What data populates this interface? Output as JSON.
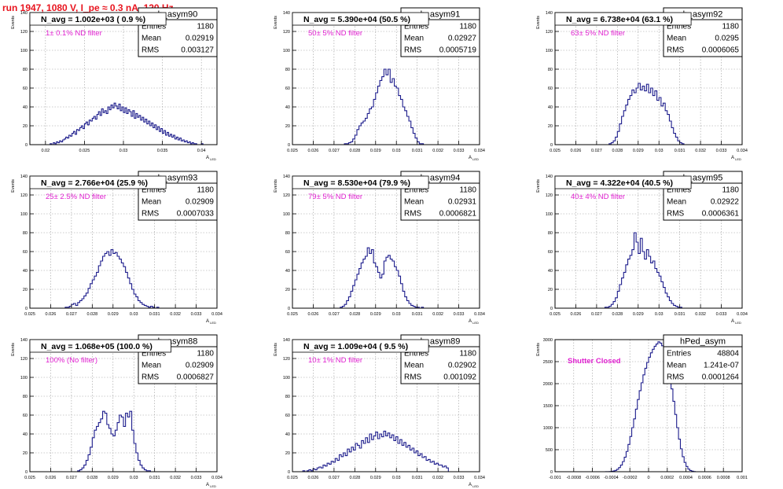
{
  "title": "run 1947,  1080 V, I_pe ≈ 0.3 nA, 120 Hz",
  "colors": {
    "title": "#e8141e",
    "histogram_line": "#1c1c8c",
    "annotation": "#e020d0",
    "grid": "#9a9a9a"
  },
  "chart_data": [
    {
      "type": "bar",
      "histogram": "h_asym90",
      "navg": "N_avg = 1.002e+03 ( 0.9 %)",
      "annotation": "1± 0.1% ND filter",
      "stats": [
        [
          "Entries",
          "1180"
        ],
        [
          "Mean",
          "0.02919"
        ],
        [
          "RMS",
          "0.003127"
        ]
      ],
      "xlim": [
        0.018,
        0.042
      ],
      "ylim": [
        0,
        140
      ],
      "xticks": [
        0.02,
        0.025,
        0.03,
        0.035,
        0.04
      ],
      "xtick_labels": [
        "0.02",
        "0.025",
        "0.03",
        "0.035",
        "0.04"
      ],
      "yticks": [
        0,
        20,
        40,
        60,
        80,
        100,
        120,
        140
      ],
      "ytick_labels": [
        "0",
        "20",
        "40",
        "60",
        "80",
        "100",
        "120",
        "140"
      ],
      "xlabel": "A_{LED}",
      "ylabel": "Events",
      "bin_edges": [
        0.018,
        0.042
      ],
      "values": [
        0,
        0,
        0,
        0,
        0,
        0,
        0,
        0,
        0,
        0,
        0,
        0,
        0,
        1,
        0,
        2,
        1,
        3,
        2,
        4,
        3,
        5,
        6,
        8,
        7,
        10,
        9,
        12,
        14,
        11,
        16,
        15,
        18,
        20,
        17,
        22,
        24,
        21,
        26,
        25,
        28,
        30,
        27,
        32,
        35,
        31,
        38,
        34,
        36,
        33,
        40,
        37,
        42,
        39,
        44,
        41,
        38,
        43,
        36,
        40,
        34,
        39,
        33,
        37,
        35,
        30,
        36,
        28,
        33,
        29,
        31,
        26,
        29,
        24,
        27,
        22,
        25,
        20,
        23,
        18,
        21,
        16,
        19,
        14,
        17,
        12,
        15,
        10,
        13,
        9,
        11,
        8,
        10,
        6,
        8,
        5,
        7,
        4,
        5,
        3,
        4,
        2,
        3,
        1,
        2,
        1,
        1,
        0,
        0,
        0,
        1,
        0,
        0,
        0,
        0,
        0,
        0,
        0,
        0,
        0
      ]
    },
    {
      "type": "bar",
      "histogram": "h_asym91",
      "navg": "N_avg = 5.390e+04 (50.5 %)",
      "annotation": "50± 5% ND filter",
      "stats": [
        [
          "Entries",
          "1180"
        ],
        [
          "Mean",
          "0.02927"
        ],
        [
          "RMS",
          "0.0005719"
        ]
      ],
      "xlim": [
        0.025,
        0.034
      ],
      "ylim": [
        0,
        140
      ],
      "xticks": [
        0.025,
        0.026,
        0.027,
        0.028,
        0.029,
        0.03,
        0.031,
        0.032,
        0.033,
        0.034
      ],
      "xtick_labels": [
        "0.025",
        "0.026",
        "0.027",
        "0.028",
        "0.029",
        "0.03",
        "0.031",
        "0.032",
        "0.033",
        "0.034"
      ],
      "yticks": [
        0,
        20,
        40,
        60,
        80,
        100,
        120,
        140
      ],
      "ytick_labels": [
        "0",
        "20",
        "40",
        "60",
        "80",
        "100",
        "120",
        "140"
      ],
      "xlabel": "A_{LED}",
      "ylabel": "Events",
      "bin_edges": [
        0.0275,
        0.0315
      ],
      "values": [
        1,
        1,
        2,
        3,
        6,
        10,
        16,
        20,
        23,
        25,
        28,
        33,
        38,
        40,
        48,
        55,
        62,
        68,
        72,
        80,
        74,
        80,
        66,
        70,
        62,
        60,
        52,
        48,
        40,
        36,
        30,
        25,
        18,
        12,
        7,
        3,
        1,
        1,
        0,
        0
      ]
    },
    {
      "type": "bar",
      "histogram": "h_asym92",
      "navg": "N_avg = 6.738e+04 (63.1 %)",
      "annotation": "63± 5% ND filter",
      "stats": [
        [
          "Entries",
          "1180"
        ],
        [
          "Mean",
          "0.0295"
        ],
        [
          "RMS",
          "0.0006065"
        ]
      ],
      "xlim": [
        0.025,
        0.034
      ],
      "ylim": [
        0,
        140
      ],
      "xticks": [
        0.025,
        0.026,
        0.027,
        0.028,
        0.029,
        0.03,
        0.031,
        0.032,
        0.033,
        0.034
      ],
      "xtick_labels": [
        "0.025",
        "0.026",
        "0.027",
        "0.028",
        "0.029",
        "0.03",
        "0.031",
        "0.032",
        "0.033",
        "0.034"
      ],
      "yticks": [
        0,
        20,
        40,
        60,
        80,
        100,
        120,
        140
      ],
      "ytick_labels": [
        "0",
        "20",
        "40",
        "60",
        "80",
        "100",
        "120",
        "140"
      ],
      "xlabel": "A_{LED}",
      "ylabel": "Events",
      "bin_edges": [
        0.0275,
        0.0315
      ],
      "values": [
        0,
        1,
        2,
        4,
        8,
        14,
        22,
        30,
        36,
        42,
        48,
        52,
        58,
        55,
        60,
        65,
        58,
        62,
        57,
        64,
        55,
        60,
        52,
        57,
        47,
        50,
        41,
        44,
        36,
        32,
        25,
        18,
        12,
        8,
        4,
        2,
        1,
        0,
        0,
        0
      ]
    },
    {
      "type": "bar",
      "histogram": "h_asym93",
      "navg": "N_avg = 2.766e+04 (25.9 %)",
      "annotation": "25± 2.5% ND filter",
      "stats": [
        [
          "Entries",
          "1180"
        ],
        [
          "Mean",
          "0.02909"
        ],
        [
          "RMS",
          "0.0007033"
        ]
      ],
      "xlim": [
        0.025,
        0.034
      ],
      "ylim": [
        0,
        140
      ],
      "xticks": [
        0.025,
        0.026,
        0.027,
        0.028,
        0.029,
        0.03,
        0.031,
        0.032,
        0.033,
        0.034
      ],
      "xtick_labels": [
        "0.025",
        "0.026",
        "0.027",
        "0.028",
        "0.029",
        "0.03",
        "0.031",
        "0.032",
        "0.033",
        "0.034"
      ],
      "yticks": [
        0,
        20,
        40,
        60,
        80,
        100,
        120,
        140
      ],
      "ytick_labels": [
        "0",
        "20",
        "40",
        "60",
        "80",
        "100",
        "120",
        "140"
      ],
      "xlabel": "A_{LED}",
      "ylabel": "Events",
      "bin_edges": [
        0.0267,
        0.0312
      ],
      "values": [
        1,
        1,
        2,
        4,
        5,
        3,
        6,
        8,
        10,
        13,
        16,
        21,
        26,
        30,
        34,
        38,
        45,
        50,
        55,
        58,
        60,
        56,
        62,
        58,
        59,
        55,
        52,
        48,
        44,
        38,
        32,
        26,
        20,
        15,
        12,
        8,
        6,
        4,
        3,
        2,
        1,
        2,
        1,
        0,
        1
      ]
    },
    {
      "type": "bar",
      "histogram": "h_asym94",
      "navg": "N_avg = 8.530e+04 (79.9 %)",
      "annotation": "79± 5% ND filter",
      "stats": [
        [
          "Entries",
          "1180"
        ],
        [
          "Mean",
          "0.02931"
        ],
        [
          "RMS",
          "0.0006821"
        ]
      ],
      "xlim": [
        0.025,
        0.034
      ],
      "ylim": [
        0,
        140
      ],
      "xticks": [
        0.025,
        0.026,
        0.027,
        0.028,
        0.029,
        0.03,
        0.031,
        0.032,
        0.033,
        0.034
      ],
      "xtick_labels": [
        "0.025",
        "0.026",
        "0.027",
        "0.028",
        "0.029",
        "0.03",
        "0.031",
        "0.032",
        "0.033",
        "0.034"
      ],
      "yticks": [
        0,
        20,
        40,
        60,
        80,
        100,
        120,
        140
      ],
      "ytick_labels": [
        "0",
        "20",
        "40",
        "60",
        "80",
        "100",
        "120",
        "140"
      ],
      "xlabel": "A_{LED}",
      "ylabel": "Events",
      "bin_edges": [
        0.0272,
        0.0316
      ],
      "values": [
        0,
        1,
        2,
        4,
        8,
        12,
        18,
        24,
        30,
        36,
        42,
        48,
        52,
        55,
        64,
        58,
        62,
        48,
        44,
        38,
        32,
        36,
        50,
        54,
        56,
        52,
        50,
        44,
        40,
        34,
        26,
        18,
        12,
        8,
        5,
        3,
        2,
        1,
        1,
        0,
        1,
        0,
        0,
        0
      ]
    },
    {
      "type": "bar",
      "histogram": "h_asym95",
      "navg": "N_avg = 4.322e+04 (40.5 %)",
      "annotation": "40± 4% ND filter",
      "stats": [
        [
          "Entries",
          "1180"
        ],
        [
          "Mean",
          "0.02922"
        ],
        [
          "RMS",
          "0.0006361"
        ]
      ],
      "xlim": [
        0.025,
        0.034
      ],
      "ylim": [
        0,
        140
      ],
      "xticks": [
        0.025,
        0.026,
        0.027,
        0.028,
        0.029,
        0.03,
        0.031,
        0.032,
        0.033,
        0.034
      ],
      "xtick_labels": [
        "0.025",
        "0.026",
        "0.027",
        "0.028",
        "0.029",
        "0.03",
        "0.031",
        "0.032",
        "0.033",
        "0.034"
      ],
      "yticks": [
        0,
        20,
        40,
        60,
        80,
        100,
        120,
        140
      ],
      "ytick_labels": [
        "0",
        "20",
        "40",
        "60",
        "80",
        "100",
        "120",
        "140"
      ],
      "xlabel": "A_{LED}",
      "ylabel": "Events",
      "bin_edges": [
        0.0274,
        0.0314
      ],
      "values": [
        1,
        1,
        2,
        4,
        7,
        11,
        18,
        25,
        32,
        38,
        46,
        52,
        56,
        62,
        80,
        70,
        58,
        74,
        60,
        52,
        62,
        55,
        48,
        50,
        42,
        38,
        34,
        28,
        22,
        16,
        12,
        8,
        5,
        3,
        2,
        1,
        1,
        0,
        0,
        0
      ]
    },
    {
      "type": "bar",
      "histogram": "h_asym88",
      "navg": "N_avg = 1.068e+05 (100.0 %)",
      "annotation": "100% (No filter)",
      "stats": [
        [
          "Entries",
          "1180"
        ],
        [
          "Mean",
          "0.02909"
        ],
        [
          "RMS",
          "0.0006827"
        ]
      ],
      "xlim": [
        0.025,
        0.034
      ],
      "ylim": [
        0,
        140
      ],
      "xticks": [
        0.025,
        0.026,
        0.027,
        0.028,
        0.029,
        0.03,
        0.031,
        0.032,
        0.033,
        0.034
      ],
      "xtick_labels": [
        "0.025",
        "0.026",
        "0.027",
        "0.028",
        "0.029",
        "0.03",
        "0.031",
        "0.032",
        "0.033",
        "0.034"
      ],
      "yticks": [
        0,
        20,
        40,
        60,
        80,
        100,
        120,
        140
      ],
      "ytick_labels": [
        "0",
        "20",
        "40",
        "60",
        "80",
        "100",
        "120",
        "140"
      ],
      "xlabel": "A_{LED}",
      "ylabel": "Events",
      "bin_edges": [
        0.0272,
        0.031
      ],
      "values": [
        0,
        1,
        2,
        4,
        7,
        12,
        18,
        26,
        36,
        44,
        48,
        52,
        56,
        64,
        62,
        50,
        46,
        40,
        38,
        44,
        52,
        60,
        58,
        48,
        62,
        58,
        64,
        44,
        30,
        20,
        12,
        7,
        4,
        2,
        1,
        1,
        0,
        0
      ]
    },
    {
      "type": "bar",
      "histogram": "h_asym89",
      "navg": "N_avg = 1.009e+04 ( 9.5 %)",
      "annotation": "10± 1% ND filter",
      "stats": [
        [
          "Entries",
          "1180"
        ],
        [
          "Mean",
          "0.02902"
        ],
        [
          "RMS",
          "0.001092"
        ]
      ],
      "xlim": [
        0.025,
        0.034
      ],
      "ylim": [
        0,
        140
      ],
      "xticks": [
        0.025,
        0.026,
        0.027,
        0.028,
        0.029,
        0.03,
        0.031,
        0.032,
        0.033,
        0.034
      ],
      "xtick_labels": [
        "0.025",
        "0.026",
        "0.027",
        "0.028",
        "0.029",
        "0.03",
        "0.031",
        "0.032",
        "0.033",
        "0.034"
      ],
      "yticks": [
        0,
        20,
        40,
        60,
        80,
        100,
        120,
        140
      ],
      "ytick_labels": [
        "0",
        "20",
        "40",
        "60",
        "80",
        "100",
        "120",
        "140"
      ],
      "xlabel": "A_{LED}",
      "ylabel": "Events",
      "bin_edges": [
        0.0255,
        0.0325
      ],
      "values": [
        1,
        0,
        1,
        2,
        1,
        3,
        2,
        4,
        5,
        4,
        7,
        6,
        9,
        8,
        11,
        10,
        14,
        12,
        18,
        16,
        20,
        17,
        24,
        21,
        26,
        23,
        30,
        28,
        25,
        33,
        30,
        36,
        31,
        40,
        34,
        38,
        42,
        35,
        40,
        37,
        43,
        38,
        41,
        36,
        39,
        33,
        37,
        30,
        34,
        28,
        31,
        26,
        28,
        23,
        25,
        20,
        22,
        17,
        19,
        15,
        16,
        12,
        13,
        10,
        11,
        8,
        9,
        7,
        7,
        5,
        6,
        4
      ]
    },
    {
      "type": "bar",
      "histogram": "hPed_asym",
      "navg": "",
      "annotation": "Shutter Closed",
      "stats": [
        [
          "Entries",
          "48804"
        ],
        [
          "Mean",
          "1.241e-07"
        ],
        [
          "RMS",
          "0.0001264"
        ]
      ],
      "xlim": [
        -0.001,
        0.001
      ],
      "ylim": [
        0,
        3000
      ],
      "xticks": [
        -0.001,
        -0.0008,
        -0.0006,
        -0.0004,
        -0.0002,
        0,
        0.0002,
        0.0004,
        0.0006,
        0.0008,
        0.001
      ],
      "xtick_labels": [
        "-0.001",
        "-0.0008",
        "-0.0006",
        "-0.0004",
        "-0.0002",
        "0",
        "0.0002",
        "0.0004",
        "0.0006",
        "0.0008",
        "0.001"
      ],
      "yticks": [
        0,
        500,
        1000,
        1500,
        2000,
        2500,
        3000
      ],
      "ytick_labels": [
        "0",
        "500",
        "1000",
        "1500",
        "2000",
        "2500",
        "3000"
      ],
      "xlabel": "",
      "ylabel": "Events",
      "bin_edges": [
        -0.0005,
        0.0005
      ],
      "values": [
        0,
        0,
        1,
        2,
        4,
        8,
        16,
        30,
        55,
        95,
        150,
        230,
        330,
        460,
        620,
        800,
        1000,
        1200,
        1420,
        1640,
        1840,
        2020,
        2200,
        2350,
        2480,
        2600,
        2700,
        2780,
        2850,
        2900,
        2950,
        2920,
        2860,
        2760,
        2600,
        2400,
        2150,
        1880,
        1600,
        1300,
        1000,
        740,
        520,
        340,
        210,
        120,
        60,
        28,
        12,
        4
      ]
    }
  ]
}
